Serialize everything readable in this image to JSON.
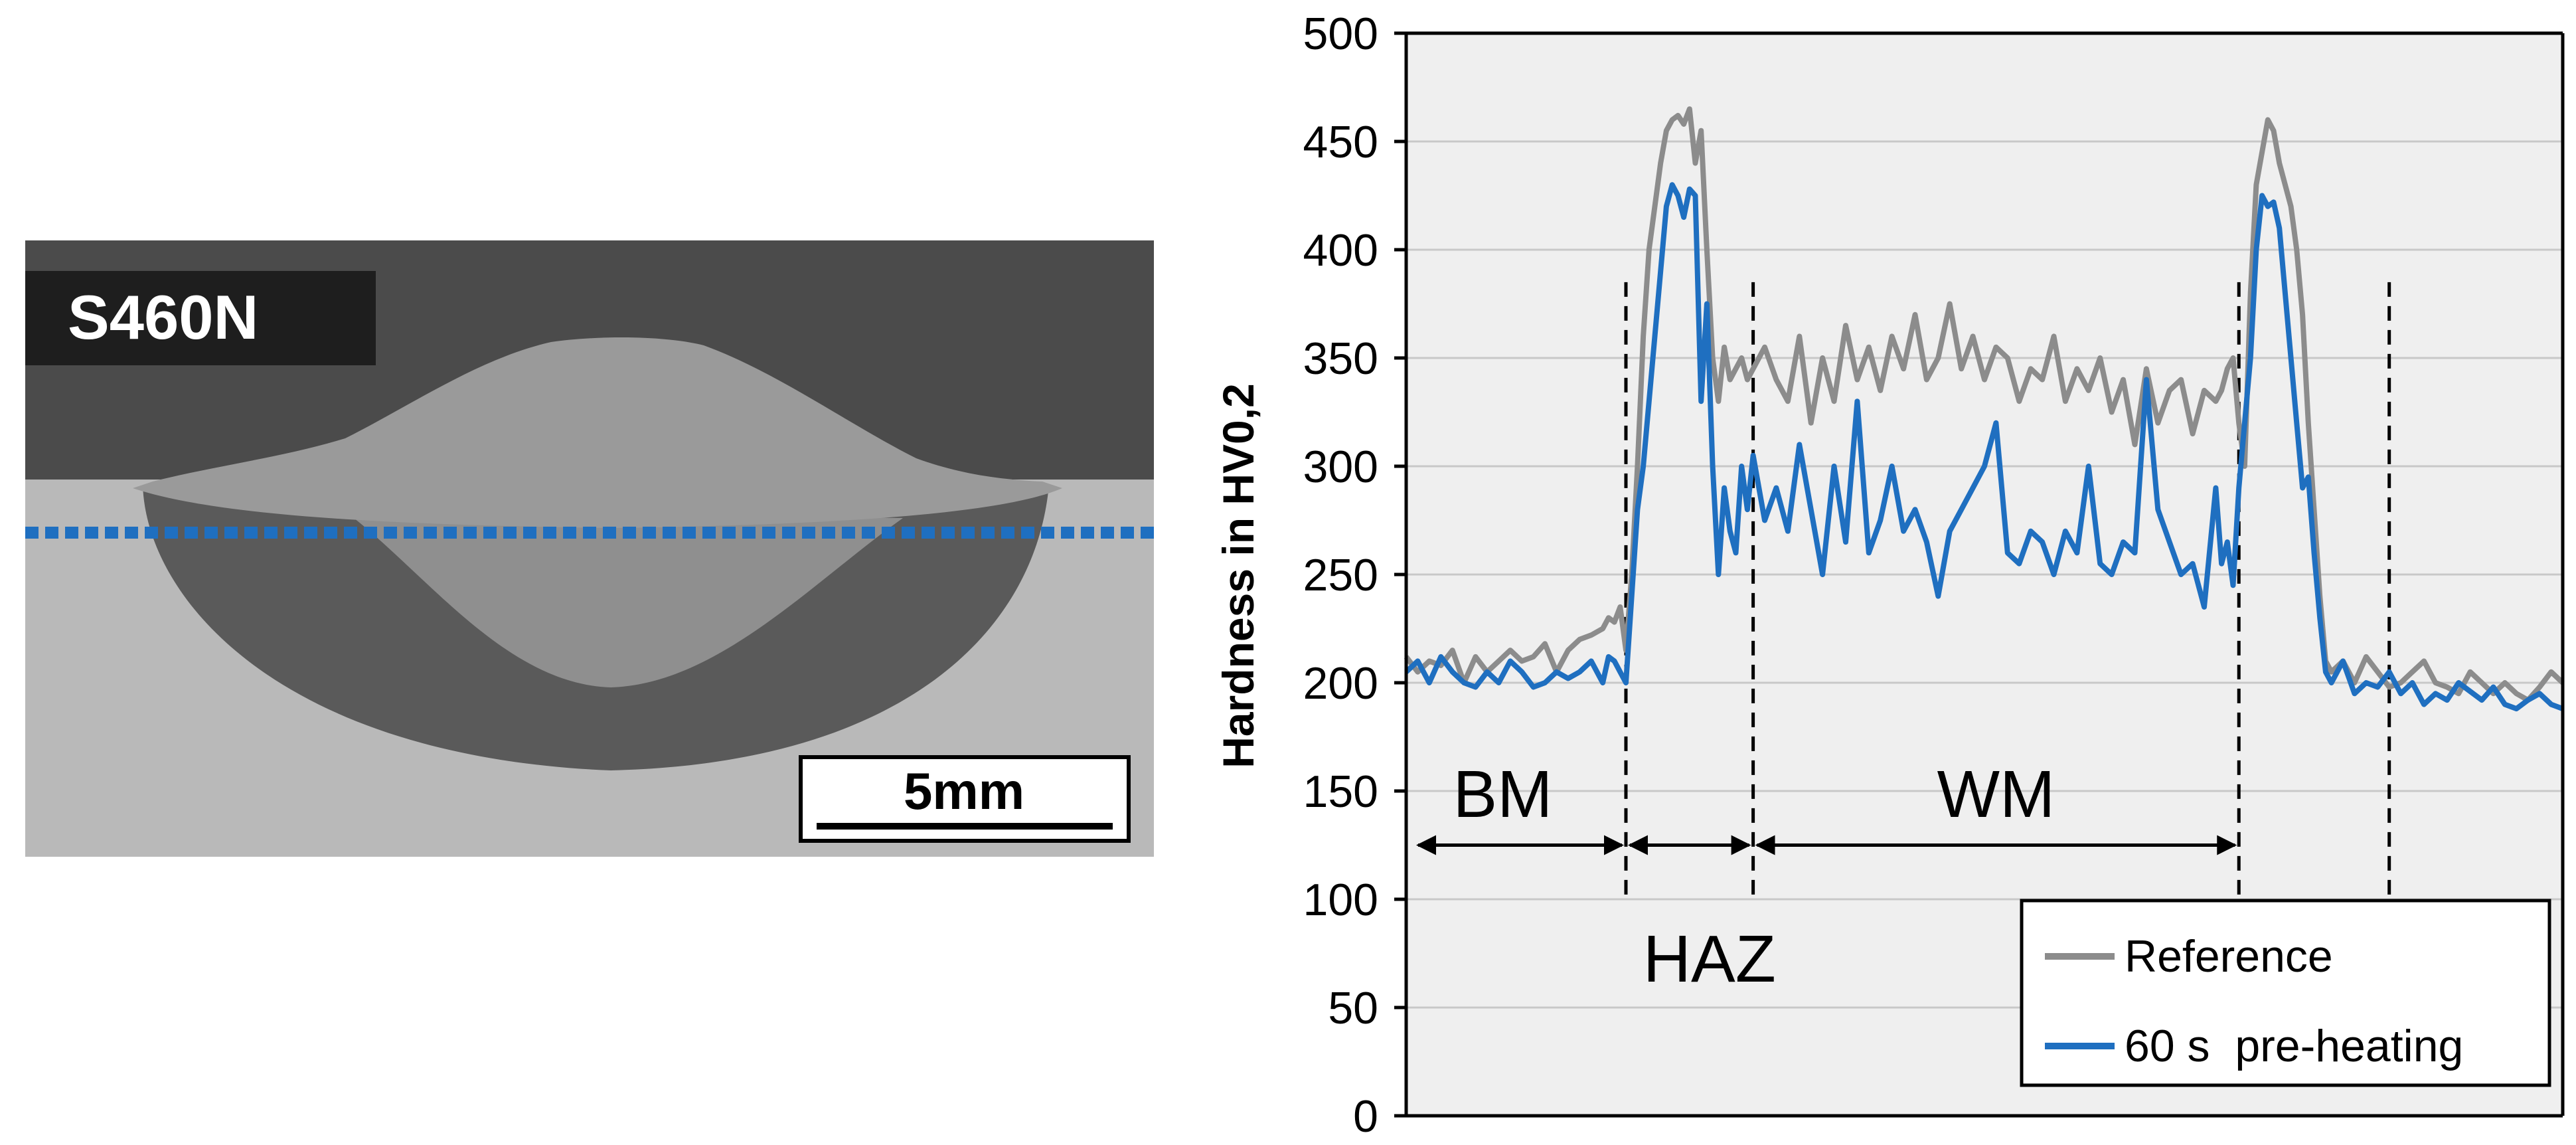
{
  "micrograph": {
    "material_label": "S460N",
    "scale_bar_label": "5mm",
    "colors": {
      "upper_background": "#4b4b4b",
      "weld_bead": "#9a9a9a",
      "base_metal": "#b9b9b9",
      "haz_dark": "#5a5a5a",
      "label_box": "#1e1e1e",
      "measure_line": "#1f6fc0"
    }
  },
  "chart_data": {
    "type": "line",
    "title": "",
    "xlabel": "",
    "ylabel": "Hardness  in HV0,2",
    "ylim": [
      0,
      500
    ],
    "yticks": [
      0,
      50,
      100,
      150,
      200,
      250,
      300,
      350,
      400,
      450,
      500
    ],
    "ytick_labels": [
      "0",
      "50",
      "100",
      "150",
      "200",
      "250",
      "300",
      "350",
      "400",
      "450",
      "500"
    ],
    "xlim": [
      0,
      1
    ],
    "grid": true,
    "legend_position": "bottom-right",
    "series": [
      {
        "name": "Reference",
        "color": "#8c8c8c",
        "x": [
          0.0,
          0.01,
          0.02,
          0.03,
          0.04,
          0.05,
          0.06,
          0.07,
          0.08,
          0.09,
          0.1,
          0.11,
          0.12,
          0.13,
          0.14,
          0.15,
          0.16,
          0.17,
          0.175,
          0.18,
          0.185,
          0.19,
          0.195,
          0.2,
          0.205,
          0.21,
          0.215,
          0.22,
          0.225,
          0.23,
          0.235,
          0.24,
          0.245,
          0.25,
          0.255,
          0.26,
          0.265,
          0.27,
          0.275,
          0.28,
          0.285,
          0.29,
          0.295,
          0.3,
          0.31,
          0.32,
          0.33,
          0.34,
          0.35,
          0.36,
          0.37,
          0.38,
          0.39,
          0.4,
          0.41,
          0.42,
          0.43,
          0.44,
          0.45,
          0.46,
          0.47,
          0.48,
          0.49,
          0.5,
          0.51,
          0.52,
          0.53,
          0.54,
          0.55,
          0.56,
          0.57,
          0.58,
          0.59,
          0.6,
          0.61,
          0.62,
          0.63,
          0.64,
          0.65,
          0.66,
          0.67,
          0.68,
          0.69,
          0.7,
          0.705,
          0.71,
          0.715,
          0.72,
          0.725,
          0.73,
          0.735,
          0.74,
          0.745,
          0.75,
          0.755,
          0.76,
          0.765,
          0.77,
          0.775,
          0.78,
          0.785,
          0.79,
          0.795,
          0.8,
          0.81,
          0.82,
          0.83,
          0.84,
          0.85,
          0.86,
          0.87,
          0.88,
          0.89,
          0.9,
          0.91,
          0.92,
          0.93,
          0.94,
          0.95,
          0.96,
          0.97,
          0.98,
          0.99,
          1.0
        ],
        "values": [
          212,
          205,
          210,
          208,
          215,
          200,
          212,
          205,
          210,
          215,
          210,
          212,
          218,
          205,
          215,
          220,
          222,
          225,
          230,
          228,
          235,
          215,
          250,
          300,
          360,
          400,
          420,
          440,
          455,
          460,
          462,
          458,
          465,
          440,
          455,
          400,
          350,
          330,
          355,
          340,
          345,
          350,
          340,
          345,
          355,
          340,
          330,
          360,
          320,
          350,
          330,
          365,
          340,
          355,
          335,
          360,
          345,
          370,
          340,
          350,
          375,
          345,
          360,
          340,
          355,
          350,
          330,
          345,
          340,
          360,
          330,
          345,
          335,
          350,
          325,
          340,
          310,
          345,
          320,
          335,
          340,
          315,
          335,
          330,
          335,
          345,
          350,
          320,
          300,
          380,
          430,
          445,
          460,
          455,
          440,
          430,
          420,
          400,
          370,
          320,
          280,
          240,
          210,
          205,
          210,
          200,
          212,
          205,
          198,
          200,
          205,
          210,
          200,
          198,
          195,
          205,
          200,
          195,
          200,
          195,
          192,
          198,
          205,
          200
        ],
        "legend_label": "Reference"
      },
      {
        "name": "60 s  pre-heating",
        "color": "#1f6fc0",
        "x": [
          0.0,
          0.01,
          0.02,
          0.03,
          0.04,
          0.05,
          0.06,
          0.07,
          0.08,
          0.09,
          0.1,
          0.11,
          0.12,
          0.13,
          0.14,
          0.15,
          0.16,
          0.17,
          0.175,
          0.18,
          0.185,
          0.19,
          0.195,
          0.2,
          0.205,
          0.21,
          0.215,
          0.22,
          0.225,
          0.23,
          0.235,
          0.24,
          0.245,
          0.25,
          0.255,
          0.26,
          0.265,
          0.27,
          0.275,
          0.28,
          0.285,
          0.29,
          0.295,
          0.3,
          0.31,
          0.32,
          0.33,
          0.34,
          0.35,
          0.36,
          0.37,
          0.38,
          0.39,
          0.4,
          0.41,
          0.42,
          0.43,
          0.44,
          0.45,
          0.46,
          0.47,
          0.48,
          0.49,
          0.5,
          0.51,
          0.52,
          0.53,
          0.54,
          0.55,
          0.56,
          0.57,
          0.58,
          0.59,
          0.6,
          0.61,
          0.62,
          0.63,
          0.64,
          0.65,
          0.66,
          0.67,
          0.68,
          0.69,
          0.7,
          0.705,
          0.71,
          0.715,
          0.72,
          0.725,
          0.73,
          0.735,
          0.74,
          0.745,
          0.75,
          0.755,
          0.76,
          0.765,
          0.77,
          0.775,
          0.78,
          0.785,
          0.79,
          0.795,
          0.8,
          0.81,
          0.82,
          0.83,
          0.84,
          0.85,
          0.86,
          0.87,
          0.88,
          0.89,
          0.9,
          0.91,
          0.92,
          0.93,
          0.94,
          0.95,
          0.96,
          0.97,
          0.98,
          0.99,
          1.0
        ],
        "values": [
          205,
          210,
          200,
          212,
          205,
          200,
          198,
          205,
          200,
          210,
          205,
          198,
          200,
          205,
          202,
          205,
          210,
          200,
          212,
          210,
          205,
          200,
          240,
          280,
          300,
          330,
          360,
          390,
          420,
          430,
          425,
          415,
          428,
          425,
          330,
          375,
          300,
          250,
          290,
          270,
          260,
          300,
          280,
          305,
          275,
          290,
          270,
          310,
          280,
          250,
          300,
          265,
          330,
          260,
          275,
          300,
          270,
          280,
          265,
          240,
          270,
          280,
          290,
          300,
          320,
          260,
          255,
          270,
          265,
          250,
          270,
          260,
          300,
          255,
          250,
          265,
          260,
          340,
          280,
          265,
          250,
          255,
          235,
          290,
          255,
          265,
          245,
          290,
          320,
          350,
          400,
          425,
          420,
          422,
          410,
          380,
          350,
          320,
          290,
          295,
          260,
          230,
          205,
          200,
          210,
          195,
          200,
          198,
          205,
          195,
          200,
          190,
          195,
          192,
          200,
          196,
          192,
          198,
          190,
          188,
          192,
          195,
          190,
          188
        ],
        "legend_label": "60 s  pre-heating"
      }
    ],
    "zone_boundaries_x": [
      0.19,
      0.3,
      0.72,
      0.85
    ],
    "zone_labels": {
      "bm": "BM",
      "haz": "HAZ",
      "wm": "WM"
    },
    "colors": {
      "plot_background": "#efefef",
      "gridline": "#c8c8c8",
      "axis": "#000000"
    }
  }
}
